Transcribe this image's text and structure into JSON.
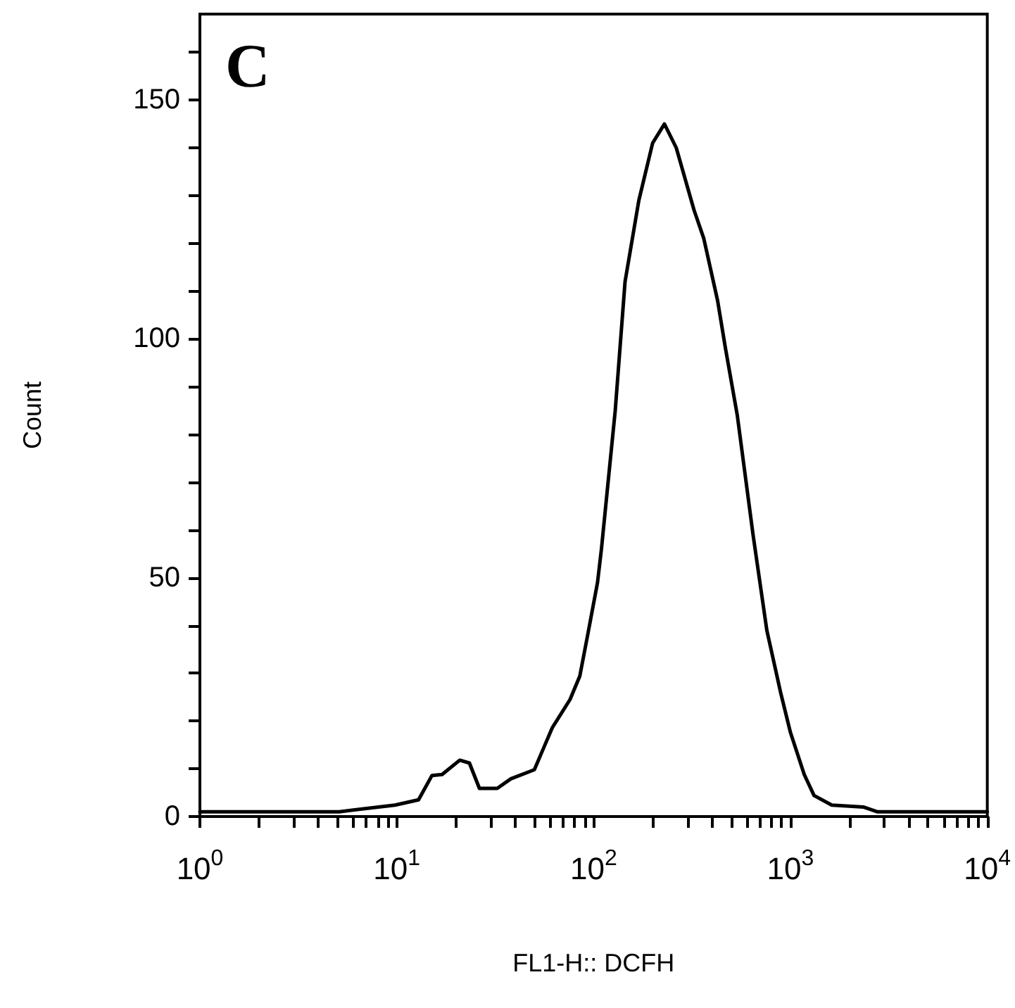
{
  "chart_data": {
    "type": "line",
    "title": "C",
    "xlabel": "FL1-H:: DCFH",
    "ylabel": "Count",
    "log": "x",
    "marker": "none",
    "line_style": "solid",
    "xlim": [
      1,
      10000
    ],
    "ylim": [
      0,
      168
    ],
    "xticks": [
      {
        "value": 1,
        "label": "10$^{0}$"
      },
      {
        "value": 2,
        "label": null
      },
      {
        "value": 3,
        "label": null
      },
      {
        "value": 4,
        "label": null
      },
      {
        "value": 5,
        "label": null
      },
      {
        "value": 6,
        "label": null
      },
      {
        "value": 7,
        "label": null
      },
      {
        "value": 8,
        "label": null
      },
      {
        "value": 9,
        "label": null
      },
      {
        "value": 10,
        "label": "10$^{1}$"
      },
      {
        "value": 20,
        "label": null
      },
      {
        "value": 30,
        "label": null
      },
      {
        "value": 40,
        "label": null
      },
      {
        "value": 50,
        "label": null
      },
      {
        "value": 60,
        "label": null
      },
      {
        "value": 70,
        "label": null
      },
      {
        "value": 80,
        "label": null
      },
      {
        "value": 90,
        "label": null
      },
      {
        "value": 100,
        "label": "10$^{2}$"
      },
      {
        "value": 200,
        "label": null
      },
      {
        "value": 300,
        "label": null
      },
      {
        "value": 400,
        "label": null
      },
      {
        "value": 500,
        "label": null
      },
      {
        "value": 600,
        "label": null
      },
      {
        "value": 700,
        "label": null
      },
      {
        "value": 800,
        "label": null
      },
      {
        "value": 900,
        "label": null
      },
      {
        "value": 1000,
        "label": "10$^{3}$"
      },
      {
        "value": 2000,
        "label": null
      },
      {
        "value": 3000,
        "label": null
      },
      {
        "value": 4000,
        "label": null
      },
      {
        "value": 5000,
        "label": null
      },
      {
        "value": 6000,
        "label": null
      },
      {
        "value": 7000,
        "label": null
      },
      {
        "value": 8000,
        "label": null
      },
      {
        "value": 9000,
        "label": null
      },
      {
        "value": 10000,
        "label": "10$^{4}$"
      }
    ],
    "yticks": [
      0,
      {
        "value": 10,
        "label": null
      },
      {
        "value": 20,
        "label": null
      },
      {
        "value": 30,
        "label": null
      },
      {
        "value": 40,
        "label": null
      },
      50,
      {
        "value": 60,
        "label": null
      },
      {
        "value": 70,
        "label": null
      },
      {
        "value": 80,
        "label": null
      },
      {
        "value": 90,
        "label": null
      },
      100,
      {
        "value": 110,
        "label": null
      },
      {
        "value": 120,
        "label": null
      },
      {
        "value": 130,
        "label": null
      },
      {
        "value": 140,
        "label": null
      },
      150,
      {
        "value": 160,
        "label": null
      }
    ],
    "series": [
      {
        "color": "#000000",
        "x": [
          1,
          5.1,
          9.8,
          12.9,
          15.1,
          17,
          20.9,
          23.4,
          26.3,
          32.4,
          38,
          50,
          55,
          61.7,
          75.9,
          85.1,
          93.3,
          104.7,
          109.6,
          128.8,
          144.5,
          169.8,
          199.5,
          229,
          263,
          323.6,
          363,
          426.6,
          467.7,
          537,
          645.7,
          758.6,
          891,
          1000,
          1175,
          1318,
          1622,
          2344,
          2754,
          10000
        ],
        "values": [
          1,
          1,
          2.4,
          3.5,
          8.6,
          8.8,
          11.8,
          11.2,
          5.9,
          5.9,
          7.9,
          9.8,
          13.8,
          18.6,
          24.5,
          29.4,
          38,
          49,
          56,
          85,
          112,
          129,
          141,
          145,
          140,
          127,
          121,
          108,
          98,
          84,
          59,
          39,
          26,
          17.6,
          8.8,
          4.4,
          2.4,
          2,
          1,
          1
        ]
      }
    ]
  }
}
